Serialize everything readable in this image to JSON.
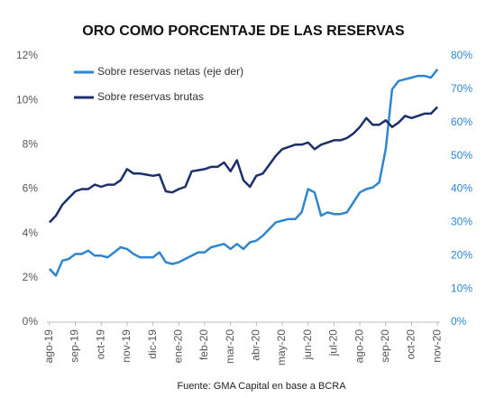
{
  "chart_data": {
    "type": "line",
    "title": "ORO COMO PORCENTAJE DE LAS RESERVAS",
    "source": "Fuente: GMA Capital en base a BCRA",
    "legend": "top-left",
    "grid": false,
    "x": [
      0,
      0.25,
      0.5,
      0.75,
      1,
      1.25,
      1.5,
      1.75,
      2,
      2.25,
      2.5,
      2.75,
      3,
      3.25,
      3.5,
      3.75,
      4,
      4.25,
      4.5,
      4.75,
      5,
      5.25,
      5.5,
      5.75,
      6,
      6.25,
      6.5,
      6.75,
      7,
      7.25,
      7.5,
      7.75,
      8,
      8.25,
      8.5,
      8.75,
      9,
      9.25,
      9.5,
      9.75,
      10,
      10.25,
      10.5,
      10.75,
      11,
      11.25,
      11.5,
      11.75,
      12,
      12.25,
      12.5,
      12.75,
      13,
      13.25,
      13.5,
      13.75,
      14,
      14.25,
      14.5,
      14.75,
      15
    ],
    "xlim": [
      -0.1,
      15.1
    ],
    "xticks": [
      {
        "value": 0,
        "label": "ago-19"
      },
      {
        "value": 1,
        "label": "sep-19"
      },
      {
        "value": 2,
        "label": "oct-19"
      },
      {
        "value": 3,
        "label": "nov-19"
      },
      {
        "value": 4,
        "label": "dic-19"
      },
      {
        "value": 5,
        "label": "ene-20"
      },
      {
        "value": 6,
        "label": "feb-20"
      },
      {
        "value": 7,
        "label": "mar-20"
      },
      {
        "value": 8,
        "label": "abr-20"
      },
      {
        "value": 9,
        "label": "may-20"
      },
      {
        "value": 10,
        "label": "jun-20"
      },
      {
        "value": 11,
        "label": "jul-20"
      },
      {
        "value": 12,
        "label": "ago-20"
      },
      {
        "value": 13,
        "label": "sep-20"
      },
      {
        "value": 14,
        "label": "oct-20"
      },
      {
        "value": 15,
        "label": "nov-20"
      }
    ],
    "ylim": [
      0,
      12
    ],
    "yticks": [
      {
        "value": 0,
        "label": "0%"
      },
      {
        "value": 2,
        "label": "2%"
      },
      {
        "value": 4,
        "label": "4%"
      },
      {
        "value": 6,
        "label": "6%"
      },
      {
        "value": 8,
        "label": "8%"
      },
      {
        "value": 10,
        "label": "10%"
      },
      {
        "value": 12,
        "label": "12%"
      }
    ],
    "y2lim": [
      0,
      80
    ],
    "y2ticks": [
      {
        "value": 0,
        "label": "0%"
      },
      {
        "value": 10,
        "label": "10%"
      },
      {
        "value": 20,
        "label": "20%"
      },
      {
        "value": 30,
        "label": "30%"
      },
      {
        "value": 40,
        "label": "40%"
      },
      {
        "value": 50,
        "label": "50%"
      },
      {
        "value": 60,
        "label": "60%"
      },
      {
        "value": 70,
        "label": "70%"
      },
      {
        "value": 80,
        "label": "80%"
      }
    ],
    "series": [
      {
        "name": "Sobre reservas netas (eje der)",
        "color": "#2e86d1",
        "axis": "y2",
        "values": [
          16,
          14,
          18.5,
          19,
          20.5,
          20.5,
          21.5,
          20,
          20,
          19.5,
          21,
          22.5,
          22,
          20.5,
          19.5,
          19.5,
          19.5,
          21,
          18,
          17.5,
          18,
          19,
          20,
          21,
          21,
          22.5,
          23,
          23.5,
          22,
          23.5,
          22,
          24,
          24.5,
          26,
          28,
          30,
          30.5,
          31,
          31,
          33,
          40,
          39,
          32,
          33,
          32.5,
          32.5,
          33,
          36,
          39,
          40,
          40.5,
          42,
          52,
          70,
          72.5,
          73,
          73.5,
          74,
          74,
          73.5,
          76
        ]
      },
      {
        "name": "Sobre reservas brutas",
        "color": "#1b2f6b",
        "values": [
          4.5,
          4.8,
          5.3,
          5.6,
          5.9,
          6.0,
          6.0,
          6.2,
          6.1,
          6.2,
          6.2,
          6.4,
          6.9,
          6.7,
          6.7,
          6.65,
          6.6,
          6.65,
          5.9,
          5.85,
          6.0,
          6.1,
          6.8,
          6.85,
          6.9,
          7.0,
          7.0,
          7.2,
          6.8,
          7.3,
          6.4,
          6.1,
          6.6,
          6.7,
          7.1,
          7.5,
          7.8,
          7.9,
          8.0,
          8.0,
          8.1,
          7.8,
          8.0,
          8.1,
          8.2,
          8.2,
          8.3,
          8.5,
          8.8,
          9.2,
          8.9,
          8.9,
          9.1,
          8.8,
          9.0,
          9.3,
          9.2,
          9.3,
          9.4,
          9.4,
          9.7
        ]
      }
    ]
  }
}
